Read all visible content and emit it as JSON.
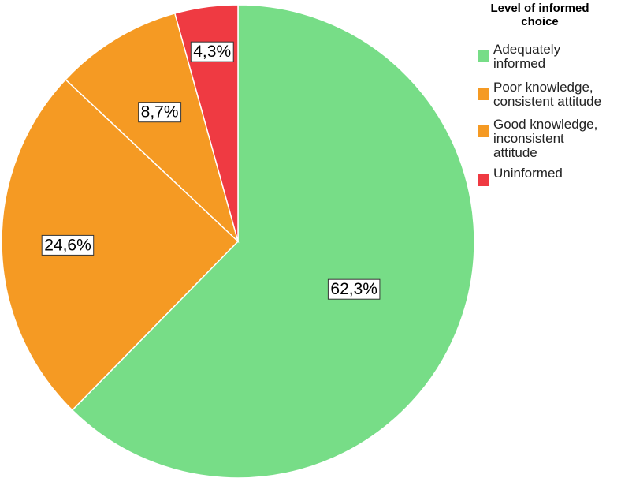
{
  "chart_data": {
    "type": "pie",
    "title": "",
    "legend_title_lines": [
      "Level of informed",
      "choice"
    ],
    "legend_position": "top-right",
    "slices": [
      {
        "name": "Adequately informed",
        "legend_lines": [
          "Adequately",
          "informed"
        ],
        "value": 62.3,
        "label": "62,3%",
        "color": "#77dd87"
      },
      {
        "name": "Poor knowledge, consistent attitude",
        "legend_lines": [
          "Poor knowledge,",
          "consistent attitude"
        ],
        "value": 24.6,
        "label": "24,6%",
        "color": "#f59a23"
      },
      {
        "name": "Good knowledge, inconsistent attitude",
        "legend_lines": [
          "Good knowledge,",
          "inconsistent",
          "attitude"
        ],
        "value": 8.7,
        "label": "8,7%",
        "color": "#f59a23"
      },
      {
        "name": "Uninformed",
        "legend_lines": [
          "Uninformed"
        ],
        "value": 4.3,
        "label": "4,3%",
        "color": "#ef3a42"
      }
    ]
  }
}
